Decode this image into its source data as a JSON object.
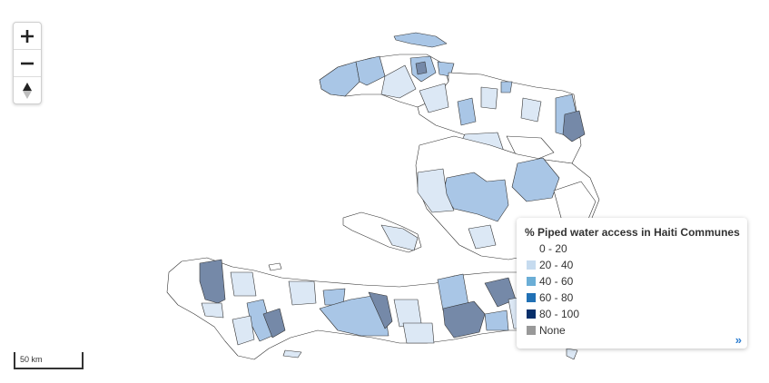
{
  "zoom": {
    "in_label": "+",
    "out_label": "−",
    "in_icon": "plus-icon",
    "out_icon": "minus-icon",
    "north_icon": "north-arrow-icon"
  },
  "scale": {
    "label": "50 km"
  },
  "legend": {
    "title": "% Piped water access in Haiti Communes",
    "items": [
      {
        "label": "0 - 20",
        "color": "#ffffff"
      },
      {
        "label": "20 - 40",
        "color": "#c6dbef"
      },
      {
        "label": "40 - 60",
        "color": "#6baed6"
      },
      {
        "label": "60 - 80",
        "color": "#2171b5"
      },
      {
        "label": "80 - 100",
        "color": "#08306b"
      },
      {
        "label": "None",
        "color": "#999999"
      }
    ],
    "toggle_icon": "double-chevron-right-icon",
    "toggle_label": "»"
  },
  "map": {
    "country": "Haiti",
    "fill_colors": {
      "white": "#ffffff",
      "light": "#dce8f5",
      "mid": "#a9c6e6",
      "dark": "#7589a8"
    },
    "border_color": "#333333",
    "outline_color": "#555555"
  }
}
